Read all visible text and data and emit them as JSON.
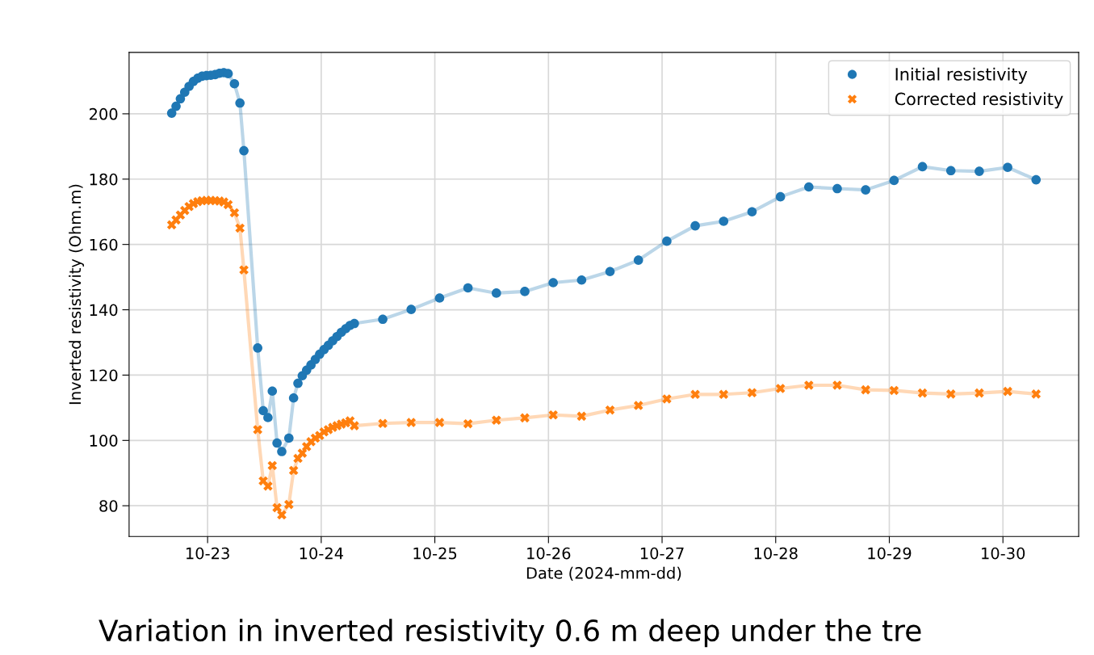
{
  "chart_data": {
    "type": "line",
    "xlabel": "Date (2024-mm-dd)",
    "ylabel": "Inverted resistivity (Ohm.m)",
    "x": [
      "2024-10-22T16:25",
      "2024-10-22T17:20",
      "2024-10-22T18:15",
      "2024-10-22T19:10",
      "2024-10-22T20:05",
      "2024-10-22T21:00",
      "2024-10-22T21:55",
      "2024-10-22T22:50",
      "2024-10-22T23:45",
      "2024-10-23T00:40",
      "2024-10-23T01:35",
      "2024-10-23T02:30",
      "2024-10-23T03:25",
      "2024-10-23T04:20",
      "2024-10-23T05:40",
      "2024-10-23T06:50",
      "2024-10-23T07:40",
      "2024-10-23T10:35",
      "2024-10-23T11:45",
      "2024-10-23T12:45",
      "2024-10-23T13:40",
      "2024-10-23T14:40",
      "2024-10-23T15:40",
      "2024-10-23T17:10",
      "2024-10-23T18:10",
      "2024-10-23T19:05",
      "2024-10-23T20:00",
      "2024-10-23T20:55",
      "2024-10-23T21:50",
      "2024-10-23T22:45",
      "2024-10-23T23:40",
      "2024-10-24T00:35",
      "2024-10-24T01:30",
      "2024-10-24T02:25",
      "2024-10-24T03:20",
      "2024-10-24T04:15",
      "2024-10-24T05:10",
      "2024-10-24T06:05",
      "2024-10-24T07:00",
      "2024-10-24T13:00",
      "2024-10-24T19:00",
      "2024-10-25T01:00",
      "2024-10-25T07:00",
      "2024-10-25T13:00",
      "2024-10-25T19:00",
      "2024-10-26T01:00",
      "2024-10-26T07:00",
      "2024-10-26T13:00",
      "2024-10-26T19:00",
      "2024-10-27T01:00",
      "2024-10-27T07:00",
      "2024-10-27T13:00",
      "2024-10-27T19:00",
      "2024-10-28T01:00",
      "2024-10-28T07:00",
      "2024-10-28T13:00",
      "2024-10-28T19:00",
      "2024-10-29T01:00",
      "2024-10-29T07:00",
      "2024-10-29T13:00",
      "2024-10-29T19:00",
      "2024-10-30T01:00",
      "2024-10-30T07:00"
    ],
    "series": [
      {
        "name": "Initial resistivity",
        "color": "#1f77b4",
        "marker": "circle",
        "values": [
          200.2,
          202.3,
          204.6,
          206.6,
          208.4,
          209.9,
          210.9,
          211.5,
          211.7,
          211.8,
          212.0,
          212.4,
          212.6,
          212.3,
          209.2,
          203.3,
          188.7,
          128.3,
          109.1,
          107.0,
          115.1,
          99.2,
          96.6,
          100.7,
          113.0,
          117.5,
          119.8,
          121.5,
          123.1,
          124.8,
          126.4,
          127.8,
          129.1,
          130.5,
          131.8,
          133.1,
          134.2,
          135.2,
          135.8,
          137.1,
          140.1,
          143.6,
          146.7,
          145.1,
          145.6,
          148.3,
          149.1,
          151.7,
          155.2,
          161.0,
          165.7,
          167.1,
          170.0,
          174.6,
          177.6,
          177.1,
          176.7,
          179.6,
          183.8,
          182.6,
          182.4,
          183.6,
          179.8
        ]
      },
      {
        "name": "Corrected resistivity",
        "color": "#ff7f0e",
        "marker": "cross",
        "values": [
          166.0,
          167.5,
          169.0,
          170.4,
          171.6,
          172.5,
          173.1,
          173.4,
          173.5,
          173.5,
          173.4,
          173.3,
          173.0,
          172.2,
          169.7,
          165.0,
          152.2,
          103.3,
          87.6,
          86.0,
          92.3,
          79.4,
          77.2,
          80.4,
          90.8,
          94.5,
          96.1,
          98.1,
          99.6,
          100.7,
          101.5,
          102.6,
          103.3,
          104.0,
          104.5,
          105.0,
          105.4,
          106.0,
          104.5,
          105.2,
          105.5,
          105.5,
          105.1,
          106.2,
          106.9,
          107.8,
          107.4,
          109.3,
          110.7,
          112.7,
          114.1,
          114.1,
          114.6,
          115.9,
          116.9,
          116.9,
          115.5,
          115.3,
          114.5,
          114.2,
          114.5,
          115.0,
          114.2
        ]
      }
    ],
    "xlim": [
      "2024-10-22T07:25",
      "2024-10-30T16:00"
    ],
    "xticks": [
      {
        "value": "2024-10-23",
        "label": "10-23"
      },
      {
        "value": "2024-10-24",
        "label": "10-24"
      },
      {
        "value": "2024-10-25",
        "label": "10-25"
      },
      {
        "value": "2024-10-26",
        "label": "10-26"
      },
      {
        "value": "2024-10-27",
        "label": "10-27"
      },
      {
        "value": "2024-10-28",
        "label": "10-28"
      },
      {
        "value": "2024-10-29",
        "label": "10-29"
      },
      {
        "value": "2024-10-30",
        "label": "10-30"
      }
    ],
    "ylim": [
      70.6,
      218.8
    ],
    "yticks": [
      80,
      100,
      120,
      140,
      160,
      180,
      200
    ],
    "grid": true,
    "legend": "top right",
    "annotations": [
      "Variation in inverted resistivity 0.6 m deep under the tre"
    ]
  }
}
